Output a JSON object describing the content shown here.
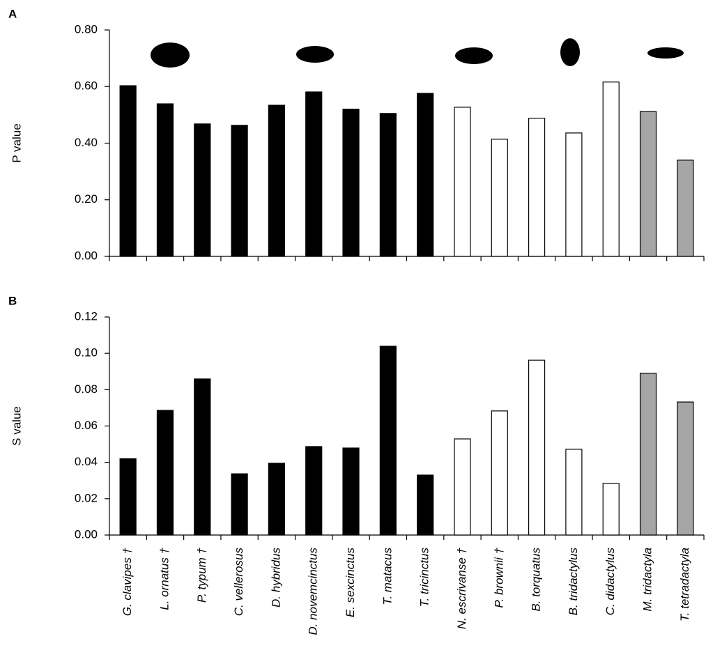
{
  "chart_data": [
    {
      "type": "bar",
      "panel": "A",
      "y_label": "P value",
      "values": [
        0.603,
        0.539,
        0.468,
        0.463,
        0.534,
        0.581,
        0.52,
        0.505,
        0.576,
        0.527,
        0.414,
        0.488,
        0.436,
        0.616,
        0.512,
        0.34
      ],
      "colors": [
        "#000000",
        "#000000",
        "#000000",
        "#000000",
        "#000000",
        "#000000",
        "#000000",
        "#000000",
        "#000000",
        "#ffffff",
        "#ffffff",
        "#ffffff",
        "#ffffff",
        "#ffffff",
        "#a6a6a6",
        "#a6a6a6"
      ],
      "ylim": [
        0,
        0.8
      ],
      "yticks": [
        {
          "value": 0,
          "label": "0.00"
        },
        {
          "value": 0.2,
          "label": "0.20"
        },
        {
          "value": 0.4,
          "label": "0.40"
        },
        {
          "value": 0.6,
          "label": "0.60"
        },
        {
          "value": 0.8,
          "label": "0.80"
        }
      ]
    },
    {
      "type": "bar",
      "panel": "B",
      "y_label": "S value",
      "categories": [
        "G. clavipes †",
        "L. ornatus †",
        "P. typum †",
        "C. vellerosus",
        "D. hybridus",
        "D. novemcinctus",
        "E. sexcinctus",
        "T. matacus",
        "T. tricinctus",
        "N. escrivanse †",
        "P. brownii †",
        "B. torquatus",
        "B. tridactylus",
        "C. didactylus",
        "M. tridactyla",
        "T. tetradactyla"
      ],
      "values": [
        0.042,
        0.0686,
        0.0859,
        0.0337,
        0.0395,
        0.0487,
        0.0479,
        0.1039,
        0.033,
        0.0529,
        0.0683,
        0.0962,
        0.0472,
        0.0284,
        0.089,
        0.0732
      ],
      "colors": [
        "#000000",
        "#000000",
        "#000000",
        "#000000",
        "#000000",
        "#000000",
        "#000000",
        "#000000",
        "#000000",
        "#ffffff",
        "#ffffff",
        "#ffffff",
        "#ffffff",
        "#ffffff",
        "#a6a6a6",
        "#a6a6a6"
      ],
      "ylim": [
        0,
        0.12
      ],
      "yticks": [
        {
          "value": 0,
          "label": "0.00"
        },
        {
          "value": 0.02,
          "label": "0.02"
        },
        {
          "value": 0.04,
          "label": "0.04"
        },
        {
          "value": 0.06,
          "label": "0.06"
        },
        {
          "value": 0.08,
          "label": "0.08"
        },
        {
          "value": 0.1,
          "label": "0.10"
        },
        {
          "value": 0.12,
          "label": "0.12"
        }
      ]
    }
  ]
}
